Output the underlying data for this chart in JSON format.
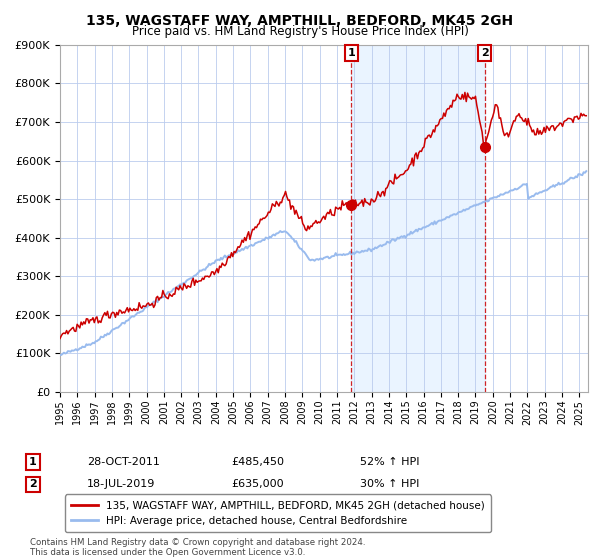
{
  "title": "135, WAGSTAFF WAY, AMPTHILL, BEDFORD, MK45 2GH",
  "subtitle": "Price paid vs. HM Land Registry's House Price Index (HPI)",
  "hpi_label": "HPI: Average price, detached house, Central Bedfordshire",
  "property_label": "135, WAGSTAFF WAY, AMPTHILL, BEDFORD, MK45 2GH (detached house)",
  "red_color": "#cc0000",
  "blue_color": "#99bbee",
  "bg_shaded": "#ddeeff",
  "point1_x": 2011.83,
  "point1_y": 485450,
  "point1_label": "1",
  "point1_date": "28-OCT-2011",
  "point1_price": "£485,450",
  "point1_hpi": "52% ↑ HPI",
  "point2_x": 2019.54,
  "point2_y": 635000,
  "point2_label": "2",
  "point2_date": "18-JUL-2019",
  "point2_price": "£635,000",
  "point2_hpi": "30% ↑ HPI",
  "ylim": [
    0,
    900000
  ],
  "xlim_start": 1995,
  "xlim_end": 2025.5,
  "footnote": "Contains HM Land Registry data © Crown copyright and database right 2024.\nThis data is licensed under the Open Government Licence v3.0."
}
